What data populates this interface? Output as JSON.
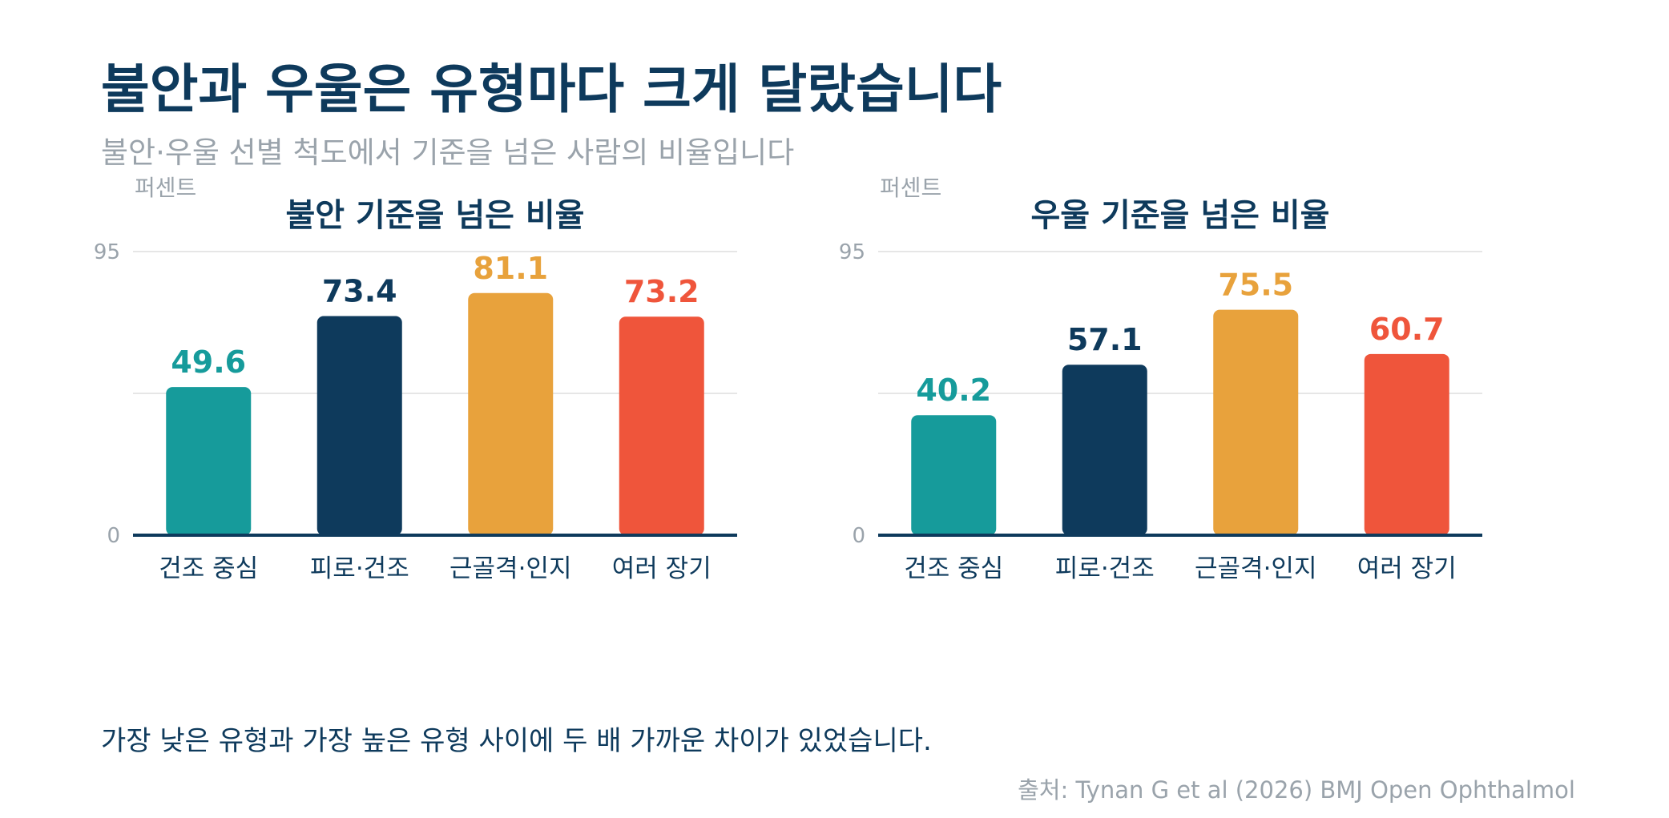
{
  "header": {
    "title": "불안과 우울은 유형마다 크게 달랐습니다",
    "subtitle": "불안·우울 선별 척도에서 기준을 넘은 사람의 비율입니다"
  },
  "footer": {
    "takeaway": "가장 낮은 유형과 가장 높은 유형 사이에 두 배 가까운 차이가 있었습니다.",
    "source": "출처: Tynan G et al (2026) BMJ Open Ophthalmol"
  },
  "colors": {
    "teal": "#169b9b",
    "navy": "#0e3a5c",
    "orange": "#e8a23c",
    "red": "#ef553b",
    "muted": "#9aa3ab"
  },
  "chart_data": [
    {
      "type": "bar",
      "title": "불안 기준을 넘은 비율",
      "ylabel": "퍼센트",
      "ylim": [
        0,
        95
      ],
      "yticks": [
        "0",
        "95"
      ],
      "grid": true,
      "categories": [
        "건조 중심",
        "피로·건조",
        "근골격·인지",
        "여러 장기"
      ],
      "values": [
        49.6,
        73.4,
        81.1,
        73.2
      ],
      "value_labels": [
        "49.6",
        "73.4",
        "81.1",
        "73.2"
      ],
      "bar_colors": [
        "#169b9b",
        "#0e3a5c",
        "#e8a23c",
        "#ef553b"
      ]
    },
    {
      "type": "bar",
      "title": "우울 기준을 넘은 비율",
      "ylabel": "퍼센트",
      "ylim": [
        0,
        95
      ],
      "yticks": [
        "0",
        "95"
      ],
      "grid": true,
      "categories": [
        "건조 중심",
        "피로·건조",
        "근골격·인지",
        "여러 장기"
      ],
      "values": [
        40.2,
        57.1,
        75.5,
        60.7
      ],
      "value_labels": [
        "40.2",
        "57.1",
        "75.5",
        "60.7"
      ],
      "bar_colors": [
        "#169b9b",
        "#0e3a5c",
        "#e8a23c",
        "#ef553b"
      ]
    }
  ]
}
